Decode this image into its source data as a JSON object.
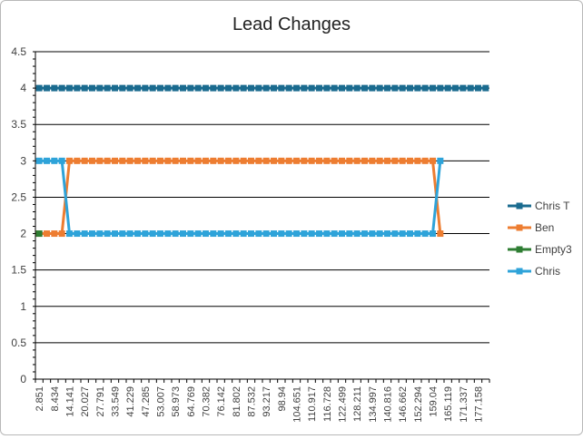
{
  "chart_data": {
    "type": "line",
    "title": "Lead Changes",
    "xlabel": "",
    "ylabel": "",
    "ylim": [
      0,
      4.5
    ],
    "yticks": [
      "0",
      "0.5",
      "1",
      "1.5",
      "2",
      "2.5",
      "3",
      "3.5",
      "4",
      "4.5"
    ],
    "xtick_labels": [
      "2.851",
      "8.434",
      "14.141",
      "20.027",
      "27.791",
      "33.549",
      "41.229",
      "47.285",
      "53.007",
      "58.973",
      "64.769",
      "70.382",
      "76.142",
      "81.802",
      "87.532",
      "93.217",
      "98.94",
      "104.651",
      "110.917",
      "116.728",
      "122.499",
      "128.211",
      "134.997",
      "140.816",
      "146.662",
      "152.294",
      "159.04",
      "165.119",
      "171.337",
      "177.158"
    ],
    "grid": "horizontal",
    "legend_position": "right",
    "num_points": 60,
    "series": [
      {
        "name": "Chris T",
        "color": "#1a6b8f",
        "values": [
          4,
          4,
          4,
          4,
          4,
          4,
          4,
          4,
          4,
          4,
          4,
          4,
          4,
          4,
          4,
          4,
          4,
          4,
          4,
          4,
          4,
          4,
          4,
          4,
          4,
          4,
          4,
          4,
          4,
          4,
          4,
          4,
          4,
          4,
          4,
          4,
          4,
          4,
          4,
          4,
          4,
          4,
          4,
          4,
          4,
          4,
          4,
          4,
          4,
          4,
          4,
          4,
          4,
          4,
          4,
          4,
          4,
          4,
          4,
          4
        ]
      },
      {
        "name": "Ben",
        "color": "#ed7d31",
        "values": [
          2,
          2,
          2,
          2,
          3,
          3,
          3,
          3,
          3,
          3,
          3,
          3,
          3,
          3,
          3,
          3,
          3,
          3,
          3,
          3,
          3,
          3,
          3,
          3,
          3,
          3,
          3,
          3,
          3,
          3,
          3,
          3,
          3,
          3,
          3,
          3,
          3,
          3,
          3,
          3,
          3,
          3,
          3,
          3,
          3,
          3,
          3,
          3,
          3,
          3,
          3,
          3,
          3,
          2,
          null,
          null,
          null,
          null,
          null,
          null
        ]
      },
      {
        "name": "Empty3",
        "color": "#2e7d32",
        "values": [
          2,
          null,
          null,
          null,
          null,
          null,
          null,
          null,
          null,
          null,
          null,
          null,
          null,
          null,
          null,
          null,
          null,
          null,
          null,
          null,
          null,
          null,
          null,
          null,
          null,
          null,
          null,
          null,
          null,
          null,
          null,
          null,
          null,
          null,
          null,
          null,
          null,
          null,
          null,
          null,
          null,
          null,
          null,
          null,
          null,
          null,
          null,
          null,
          null,
          null,
          null,
          null,
          null,
          null,
          null,
          null,
          null,
          null,
          null,
          null
        ]
      },
      {
        "name": "Chris",
        "color": "#2ea3d9",
        "values": [
          3,
          3,
          3,
          3,
          2,
          2,
          2,
          2,
          2,
          2,
          2,
          2,
          2,
          2,
          2,
          2,
          2,
          2,
          2,
          2,
          2,
          2,
          2,
          2,
          2,
          2,
          2,
          2,
          2,
          2,
          2,
          2,
          2,
          2,
          2,
          2,
          2,
          2,
          2,
          2,
          2,
          2,
          2,
          2,
          2,
          2,
          2,
          2,
          2,
          2,
          2,
          2,
          2,
          3,
          null,
          null,
          null,
          null,
          null,
          null
        ]
      }
    ]
  }
}
